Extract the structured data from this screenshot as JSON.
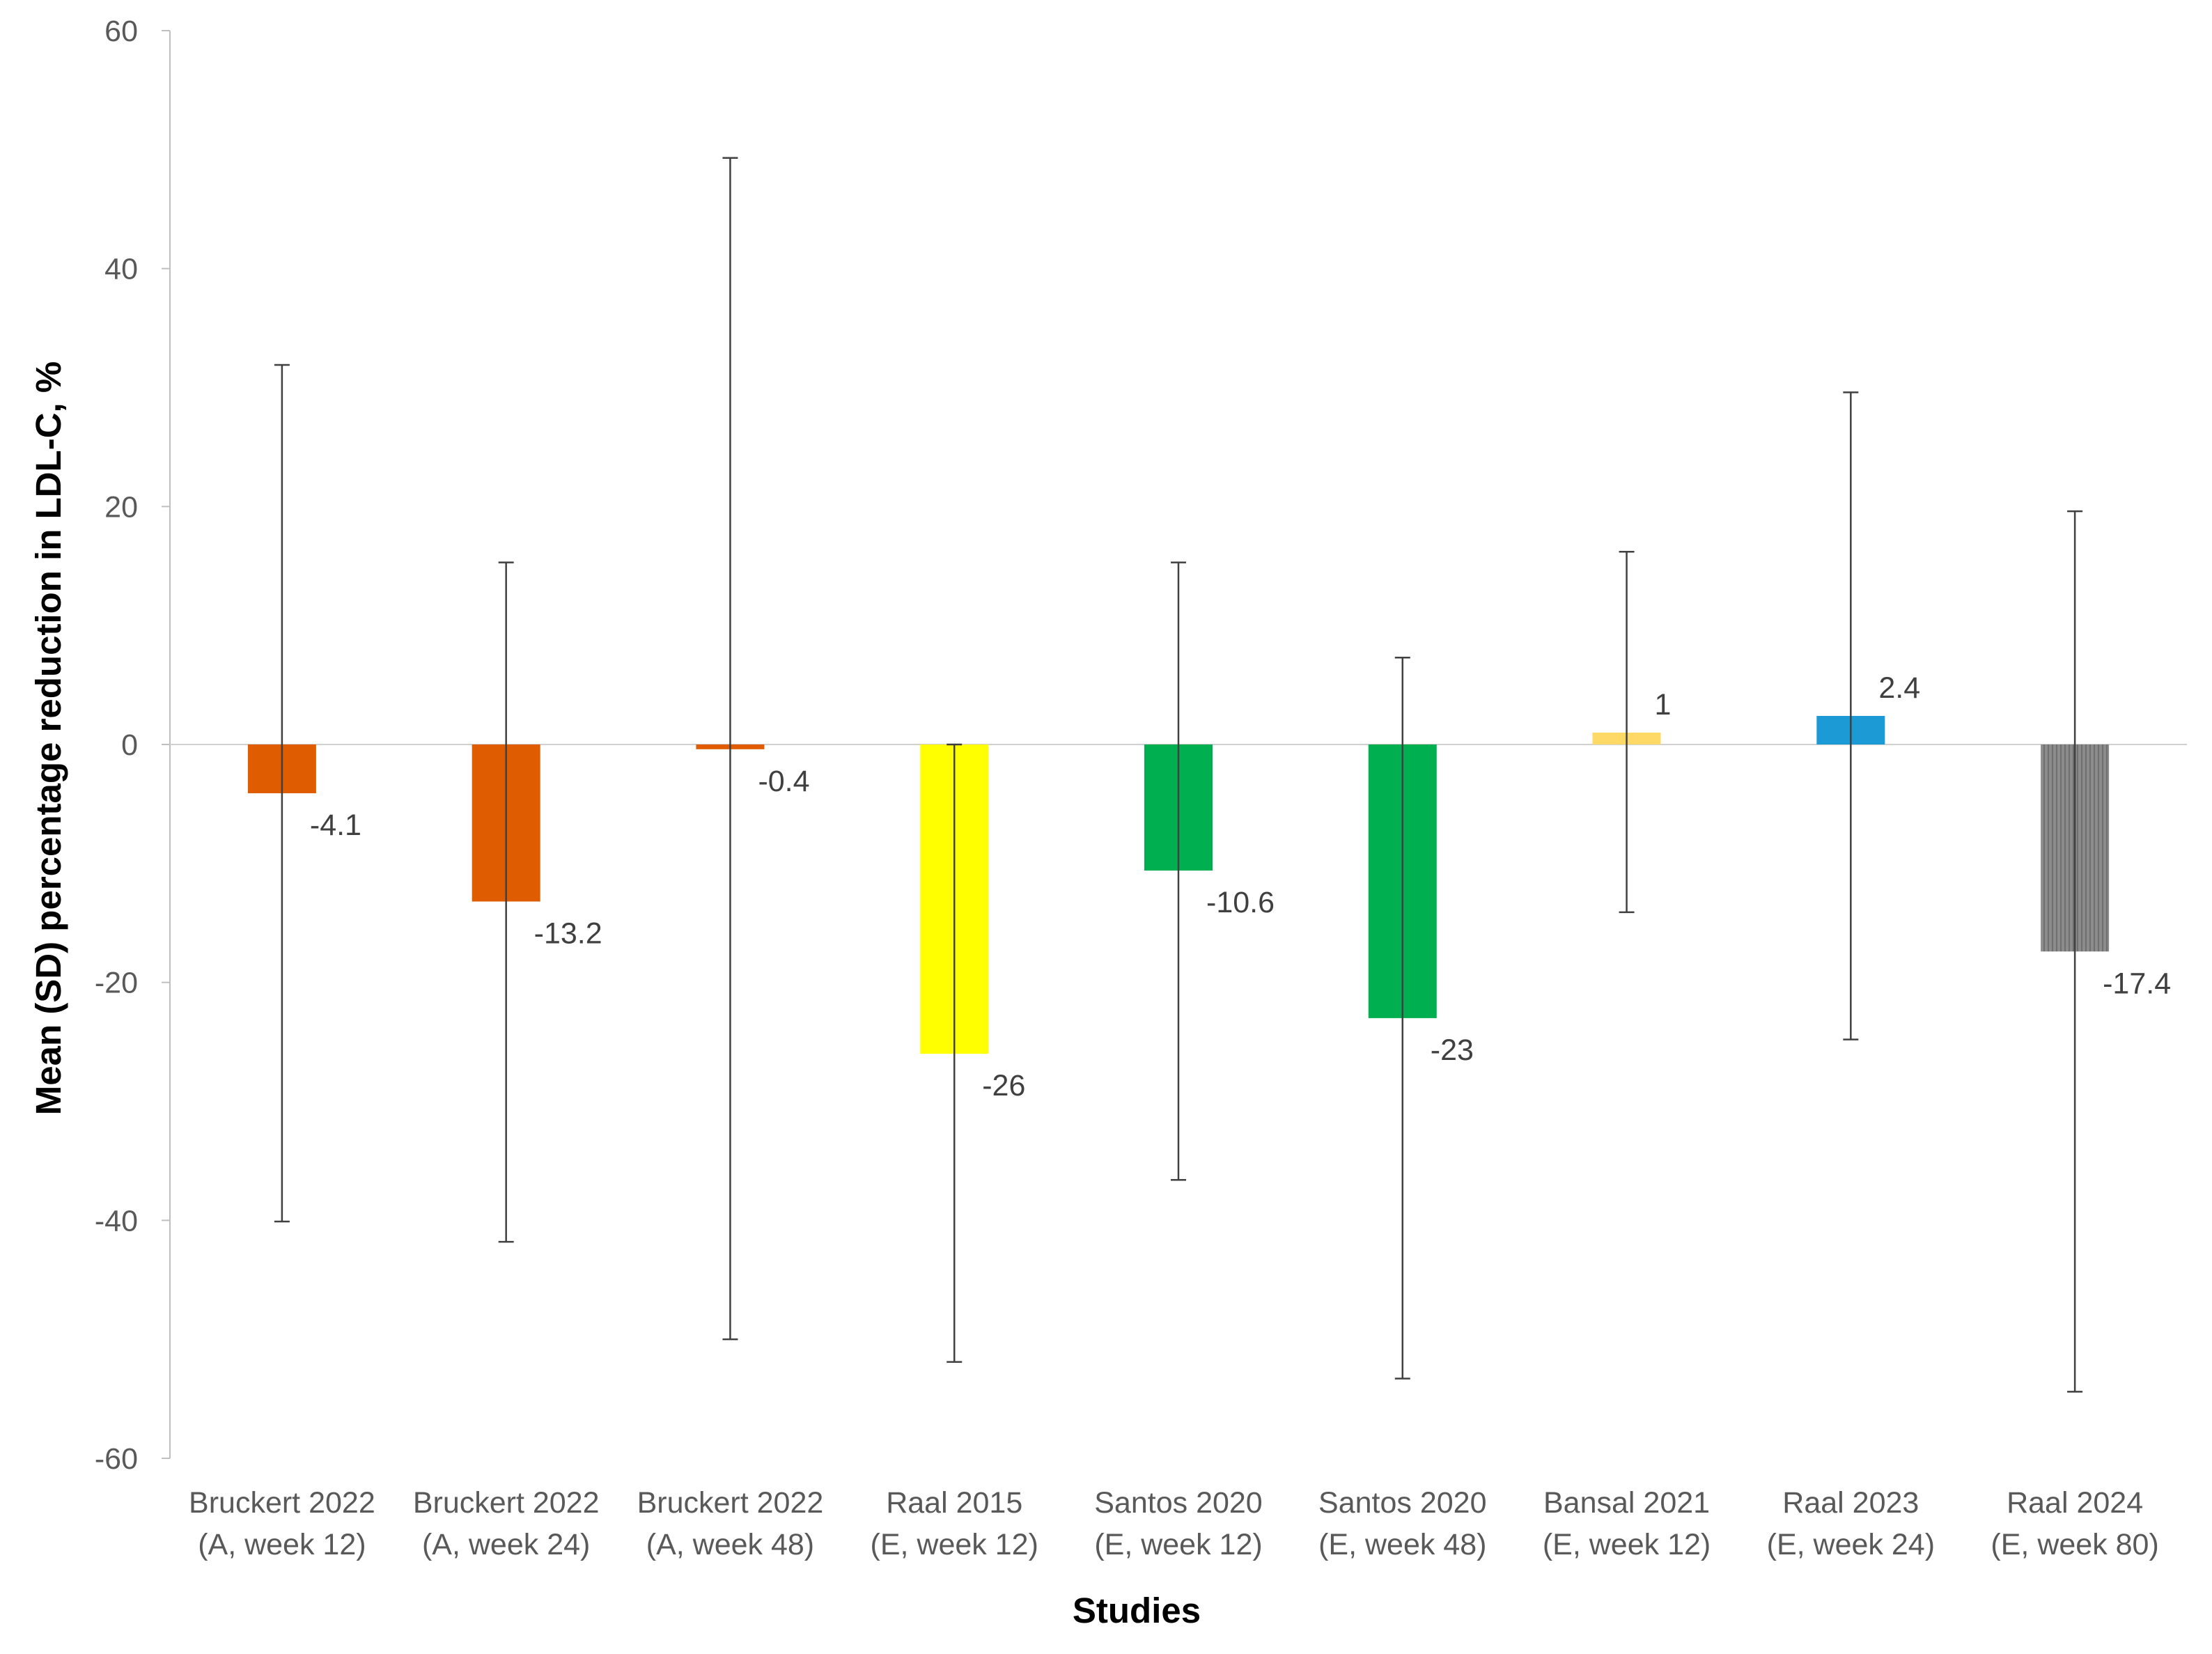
{
  "chart_data": {
    "type": "bar",
    "title": "",
    "xlabel": "Studies",
    "ylabel": "Mean (SD) percentage reduction in LDL-C, %",
    "ylim": [
      -60,
      60
    ],
    "yticks": [
      60,
      40,
      20,
      0,
      -20,
      -40,
      -60
    ],
    "ytick_labels": [
      "60",
      "40",
      "20",
      "0",
      "-20",
      "-40",
      "-60"
    ],
    "grid": false,
    "legend": "none",
    "categories": [
      {
        "line1": "Bruckert 2022",
        "line2": "(A, week 12)"
      },
      {
        "line1": "Bruckert 2022",
        "line2": "(A, week 24)"
      },
      {
        "line1": "Bruckert 2022",
        "line2": "(A, week 48)"
      },
      {
        "line1": "Raal 2015",
        "line2": "(E, week 12)"
      },
      {
        "line1": "Santos 2020",
        "line2": "(E, week 12)"
      },
      {
        "line1": "Santos 2020",
        "line2": "(E, week 48)"
      },
      {
        "line1": "Bansal 2021",
        "line2": "(E, week 12)"
      },
      {
        "line1": "Raal 2023",
        "line2": "(E, week 24)"
      },
      {
        "line1": "Raal 2024",
        "line2": "(E, week 80)"
      }
    ],
    "values": [
      -4.1,
      -13.2,
      -0.4,
      -26,
      -10.6,
      -23,
      1,
      2.4,
      -17.4
    ],
    "value_labels": [
      "-4.1",
      "-13.2",
      "-0.4",
      "-26",
      "-10.6",
      "-23",
      "1",
      "2.4",
      "-17.4"
    ],
    "error_low": [
      -40.1,
      -41.8,
      -50.0,
      -51.9,
      -36.6,
      -53.3,
      -14.1,
      -24.8,
      -54.4
    ],
    "error_high": [
      31.9,
      15.3,
      49.3,
      0.0,
      15.3,
      7.3,
      16.2,
      29.6,
      19.6
    ],
    "colors": [
      "#E05C00",
      "#E05C00",
      "#E05C00",
      "#FFFF00",
      "#00B050",
      "#00B050",
      "#FFD966",
      "#1C9AD6",
      "#808080"
    ],
    "patterns": [
      "solid",
      "solid",
      "solid",
      "solid",
      "solid",
      "solid",
      "solid",
      "solid",
      "vertical-hatch"
    ]
  }
}
